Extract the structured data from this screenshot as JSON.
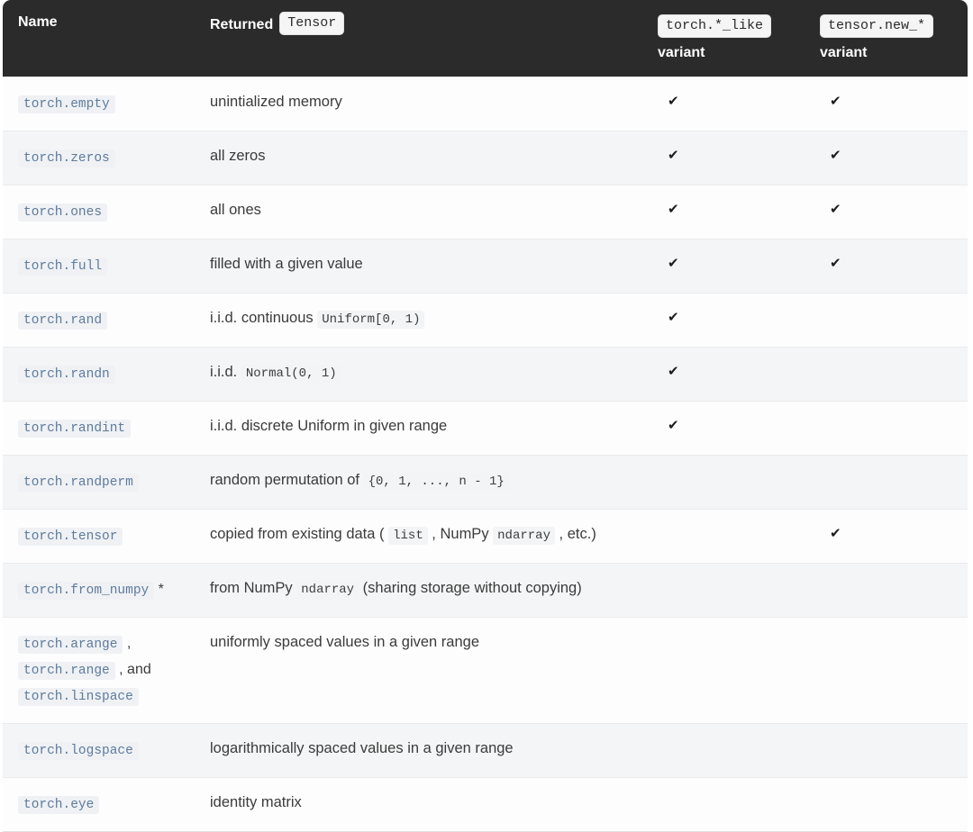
{
  "table": {
    "header": {
      "name_label": "Name",
      "returned_label": "Returned",
      "returned_code": "Tensor",
      "like_code": "torch.*_like",
      "like_label": "variant",
      "new_code": "tensor.new_*",
      "new_label": "variant"
    },
    "check_glyph": "✔",
    "rows": [
      {
        "name_lines": [
          [
            {
              "c": "torch.empty"
            }
          ]
        ],
        "desc": [
          {
            "t": "unintialized memory"
          }
        ],
        "like": true,
        "new": true
      },
      {
        "name_lines": [
          [
            {
              "c": "torch.zeros"
            }
          ]
        ],
        "desc": [
          {
            "t": "all zeros"
          }
        ],
        "like": true,
        "new": true
      },
      {
        "name_lines": [
          [
            {
              "c": "torch.ones"
            }
          ]
        ],
        "desc": [
          {
            "t": "all ones"
          }
        ],
        "like": true,
        "new": true
      },
      {
        "name_lines": [
          [
            {
              "c": "torch.full"
            }
          ]
        ],
        "desc": [
          {
            "t": "filled with a given value"
          }
        ],
        "like": true,
        "new": true
      },
      {
        "name_lines": [
          [
            {
              "c": "torch.rand"
            }
          ]
        ],
        "desc": [
          {
            "t": "i.i.d. continuous "
          },
          {
            "c": "Uniform[0, 1)"
          }
        ],
        "like": true,
        "new": false
      },
      {
        "name_lines": [
          [
            {
              "c": "torch.randn"
            }
          ]
        ],
        "desc": [
          {
            "t": "i.i.d. "
          },
          {
            "c": "Normal(0, 1)"
          }
        ],
        "like": true,
        "new": false
      },
      {
        "name_lines": [
          [
            {
              "c": "torch.randint"
            }
          ]
        ],
        "desc": [
          {
            "t": "i.i.d. discrete Uniform in given range"
          }
        ],
        "like": true,
        "new": false
      },
      {
        "name_lines": [
          [
            {
              "c": "torch.randperm"
            }
          ]
        ],
        "desc": [
          {
            "t": "random permutation of "
          },
          {
            "c": "{0, 1, ..., n - 1}"
          }
        ],
        "like": false,
        "new": false
      },
      {
        "name_lines": [
          [
            {
              "c": "torch.tensor"
            }
          ]
        ],
        "desc": [
          {
            "t": "copied from existing data ( "
          },
          {
            "c": "list"
          },
          {
            "t": " , NumPy "
          },
          {
            "c": "ndarray"
          },
          {
            "t": " , etc.)"
          }
        ],
        "like": false,
        "new": true
      },
      {
        "name_lines": [
          [
            {
              "c": "torch.from_numpy"
            },
            {
              "t": " *"
            }
          ]
        ],
        "desc": [
          {
            "t": "from NumPy "
          },
          {
            "c": "ndarray"
          },
          {
            "t": " (sharing storage without copying)"
          }
        ],
        "like": false,
        "new": false
      },
      {
        "name_lines": [
          [
            {
              "c": "torch.arange"
            },
            {
              "t": " ,"
            }
          ],
          [
            {
              "c": "torch.range"
            },
            {
              "t": " , and"
            }
          ],
          [
            {
              "c": "torch.linspace"
            }
          ]
        ],
        "desc": [
          {
            "t": "uniformly spaced values in a given range"
          }
        ],
        "like": false,
        "new": false
      },
      {
        "name_lines": [
          [
            {
              "c": "torch.logspace"
            }
          ]
        ],
        "desc": [
          {
            "t": "logarithmically spaced values in a given range"
          }
        ],
        "like": false,
        "new": false
      },
      {
        "name_lines": [
          [
            {
              "c": "torch.eye"
            }
          ]
        ],
        "desc": [
          {
            "t": "identity matrix"
          }
        ],
        "like": false,
        "new": false
      }
    ]
  },
  "colors": {
    "header_bg": "#2b2b2b",
    "header_text": "#ffffff",
    "badge_bg": "#f5f5f5",
    "badge_text": "#2b2b2b",
    "link_code_text": "#5e7b9c",
    "code_bg": "#eff1f4",
    "desc_text": "#3b3b3b",
    "row_bg": "#fdfdfd",
    "row_alt_bg": "#f4f5f6",
    "row_border": "#e9ebec",
    "check": "#1c1c1c"
  }
}
